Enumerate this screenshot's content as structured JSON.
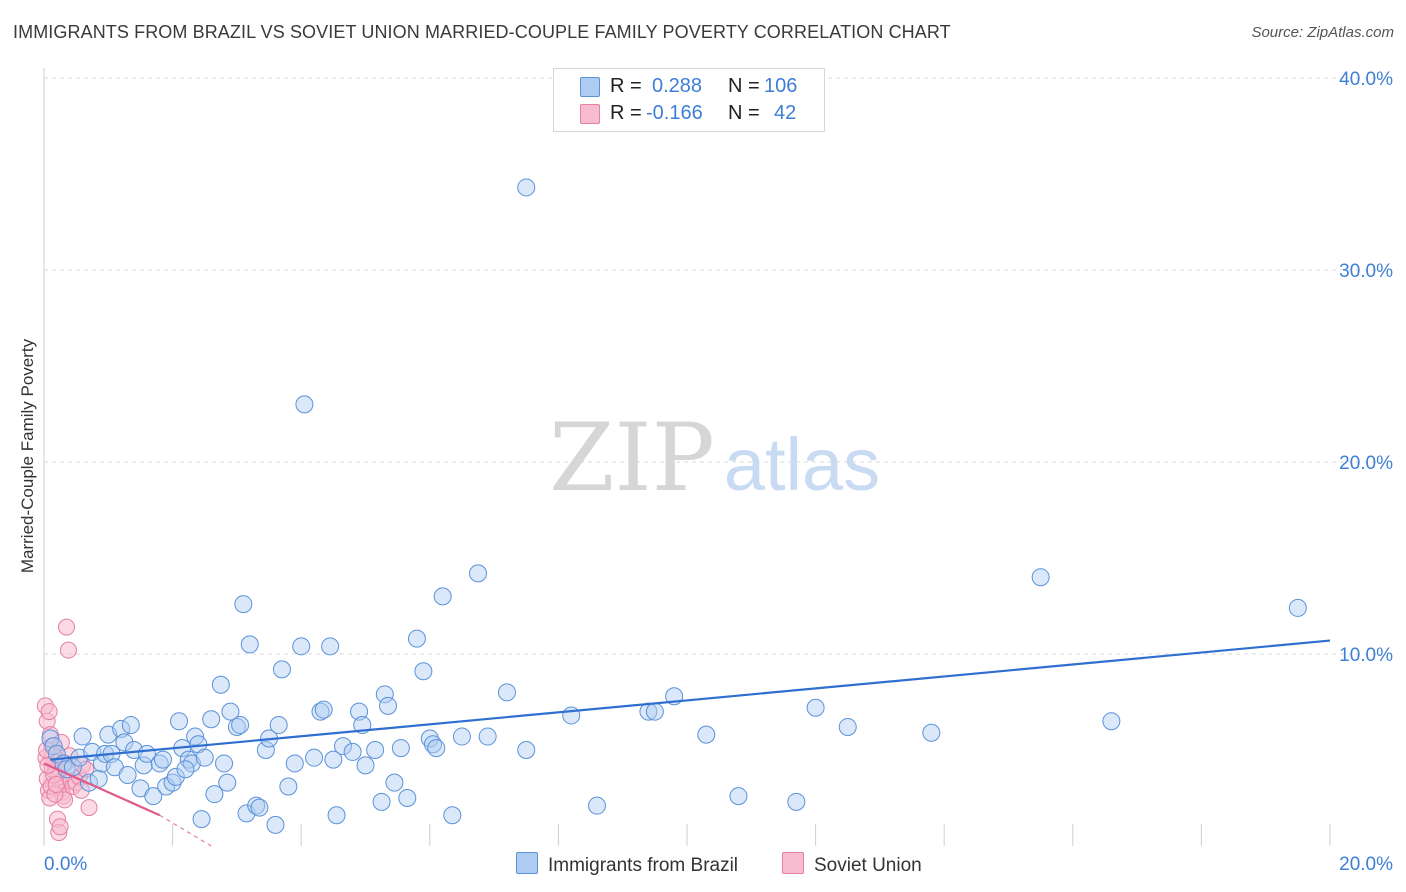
{
  "title": "IMMIGRANTS FROM BRAZIL VS SOVIET UNION MARRIED-COUPLE FAMILY POVERTY CORRELATION CHART",
  "source": "Source: ZipAtlas.com",
  "watermark": {
    "zip": "ZIP",
    "atlas": "atlas"
  },
  "legend": {
    "r_label": "R =",
    "n_label": "N =",
    "brazil": {
      "r": "0.288",
      "n": "106"
    },
    "soviet": {
      "r": "-0.166",
      "n": "42"
    }
  },
  "colors": {
    "brazil_fill": "#aecbf2",
    "brazil_stroke": "#5b92d8",
    "brazil_line": "#2f6fd0",
    "soviet_fill": "#f7bcd0",
    "soviet_stroke": "#e57fa4",
    "soviet_line": "#e05a8a",
    "tick_text": "#3d7fd6",
    "grid": "#d9d9d9"
  },
  "chart_data": {
    "type": "scatter",
    "title": "IMMIGRANTS FROM BRAZIL VS SOVIET UNION MARRIED-COUPLE FAMILY POVERTY CORRELATION CHART",
    "xlabel": "",
    "ylabel": "Married-Couple Family Poverty",
    "xlim": [
      0,
      20
    ],
    "ylim": [
      0,
      40
    ],
    "x_tick_labels": [
      "0.0%",
      "20.0%"
    ],
    "y_ticks": [
      10,
      20,
      30,
      40
    ],
    "y_tick_labels": [
      "10.0%",
      "20.0%",
      "30.0%",
      "40.0%"
    ],
    "legend_position": "top-center",
    "series": [
      {
        "name": "Immigrants from Brazil",
        "trend": {
          "x": [
            0.1,
            20.0
          ],
          "y": [
            4.5,
            10.7
          ]
        },
        "points": [
          [
            0.1,
            5.6
          ],
          [
            0.15,
            5.2
          ],
          [
            0.2,
            4.8
          ],
          [
            0.3,
            4.3
          ],
          [
            0.35,
            4.0
          ],
          [
            0.45,
            4.1
          ],
          [
            0.55,
            4.6
          ],
          [
            0.6,
            5.7
          ],
          [
            0.7,
            3.3
          ],
          [
            0.75,
            4.9
          ],
          [
            0.85,
            3.5
          ],
          [
            0.9,
            4.3
          ],
          [
            0.95,
            4.8
          ],
          [
            1.0,
            5.8
          ],
          [
            1.05,
            4.8
          ],
          [
            1.1,
            4.1
          ],
          [
            1.2,
            6.1
          ],
          [
            1.25,
            5.4
          ],
          [
            1.3,
            3.7
          ],
          [
            1.35,
            6.3
          ],
          [
            1.4,
            5.0
          ],
          [
            1.5,
            3.0
          ],
          [
            1.55,
            4.2
          ],
          [
            1.6,
            4.8
          ],
          [
            1.7,
            2.6
          ],
          [
            1.8,
            4.3
          ],
          [
            1.85,
            4.5
          ],
          [
            1.9,
            3.1
          ],
          [
            2.0,
            3.3
          ],
          [
            2.05,
            3.6
          ],
          [
            2.1,
            6.5
          ],
          [
            2.15,
            5.1
          ],
          [
            2.25,
            4.5
          ],
          [
            2.3,
            4.3
          ],
          [
            2.35,
            5.7
          ],
          [
            2.4,
            5.3
          ],
          [
            2.45,
            1.4
          ],
          [
            2.5,
            4.6
          ],
          [
            2.6,
            6.6
          ],
          [
            2.65,
            2.7
          ],
          [
            2.75,
            8.4
          ],
          [
            2.8,
            4.3
          ],
          [
            2.85,
            3.3
          ],
          [
            2.9,
            7.0
          ],
          [
            3.0,
            6.2
          ],
          [
            3.05,
            6.3
          ],
          [
            3.1,
            12.6
          ],
          [
            3.15,
            1.7
          ],
          [
            3.2,
            10.5
          ],
          [
            3.3,
            2.1
          ],
          [
            3.35,
            2.0
          ],
          [
            3.45,
            5.0
          ],
          [
            3.5,
            5.6
          ],
          [
            3.6,
            1.1
          ],
          [
            3.65,
            6.3
          ],
          [
            3.7,
            9.2
          ],
          [
            3.8,
            3.1
          ],
          [
            3.9,
            4.3
          ],
          [
            4.0,
            10.4
          ],
          [
            4.05,
            23.0
          ],
          [
            4.2,
            4.6
          ],
          [
            4.3,
            7.0
          ],
          [
            4.35,
            7.1
          ],
          [
            4.45,
            10.4
          ],
          [
            4.5,
            4.5
          ],
          [
            4.55,
            1.6
          ],
          [
            4.65,
            5.2
          ],
          [
            4.8,
            4.9
          ],
          [
            4.9,
            7.0
          ],
          [
            4.95,
            6.3
          ],
          [
            5.15,
            5.0
          ],
          [
            5.25,
            2.3
          ],
          [
            5.3,
            7.9
          ],
          [
            5.35,
            7.3
          ],
          [
            5.45,
            3.3
          ],
          [
            5.55,
            5.1
          ],
          [
            5.65,
            2.5
          ],
          [
            5.8,
            10.8
          ],
          [
            5.9,
            9.1
          ],
          [
            6.0,
            5.6
          ],
          [
            6.05,
            5.3
          ],
          [
            6.1,
            5.1
          ],
          [
            6.2,
            13.0
          ],
          [
            6.35,
            1.6
          ],
          [
            6.5,
            5.7
          ],
          [
            6.75,
            14.2
          ],
          [
            6.9,
            5.7
          ],
          [
            7.2,
            8.0
          ],
          [
            7.5,
            5.0
          ],
          [
            8.2,
            6.8
          ],
          [
            8.6,
            2.1
          ],
          [
            9.4,
            7.0
          ],
          [
            9.5,
            7.0
          ],
          [
            9.8,
            7.8
          ],
          [
            10.3,
            5.8
          ],
          [
            10.8,
            2.6
          ],
          [
            11.7,
            2.3
          ],
          [
            12.0,
            7.2
          ],
          [
            12.5,
            6.2
          ],
          [
            13.8,
            5.9
          ],
          [
            15.5,
            14.0
          ],
          [
            16.6,
            6.5
          ],
          [
            19.5,
            12.4
          ],
          [
            7.5,
            34.3
          ],
          [
            2.2,
            4.0
          ],
          [
            5.0,
            4.2
          ]
        ]
      },
      {
        "name": "Soviet Union",
        "trend": {
          "x": [
            0.0,
            1.8
          ],
          "y": [
            4.3,
            1.6
          ]
        },
        "trend_dashed": {
          "x": [
            1.8,
            2.6
          ],
          "y": [
            1.6,
            0.0
          ]
        },
        "points": [
          [
            0.02,
            7.3
          ],
          [
            0.05,
            6.5
          ],
          [
            0.08,
            7.0
          ],
          [
            0.1,
            5.8
          ],
          [
            0.12,
            5.2
          ],
          [
            0.14,
            4.8
          ],
          [
            0.16,
            4.4
          ],
          [
            0.18,
            4.1
          ],
          [
            0.2,
            3.9
          ],
          [
            0.22,
            3.6
          ],
          [
            0.24,
            3.3
          ],
          [
            0.26,
            3.0
          ],
          [
            0.28,
            2.8
          ],
          [
            0.3,
            2.6
          ],
          [
            0.32,
            2.4
          ],
          [
            0.05,
            3.5
          ],
          [
            0.07,
            2.9
          ],
          [
            0.09,
            2.5
          ],
          [
            0.11,
            3.1
          ],
          [
            0.13,
            4.0
          ],
          [
            0.15,
            3.7
          ],
          [
            0.17,
            2.7
          ],
          [
            0.19,
            3.2
          ],
          [
            0.21,
            1.4
          ],
          [
            0.23,
            0.7
          ],
          [
            0.25,
            1.0
          ],
          [
            0.35,
            11.4
          ],
          [
            0.38,
            10.2
          ],
          [
            0.4,
            4.7
          ],
          [
            0.42,
            3.4
          ],
          [
            0.45,
            3.1
          ],
          [
            0.5,
            3.3
          ],
          [
            0.55,
            3.6
          ],
          [
            0.58,
            2.9
          ],
          [
            0.6,
            4.2
          ],
          [
            0.65,
            4.0
          ],
          [
            0.7,
            2.0
          ],
          [
            0.03,
            4.6
          ],
          [
            0.06,
            4.2
          ],
          [
            0.04,
            5.0
          ],
          [
            0.27,
            5.4
          ],
          [
            0.33,
            4.3
          ]
        ]
      }
    ]
  },
  "bottom_legend": {
    "brazil": "Immigrants from Brazil",
    "soviet": "Soviet Union"
  }
}
